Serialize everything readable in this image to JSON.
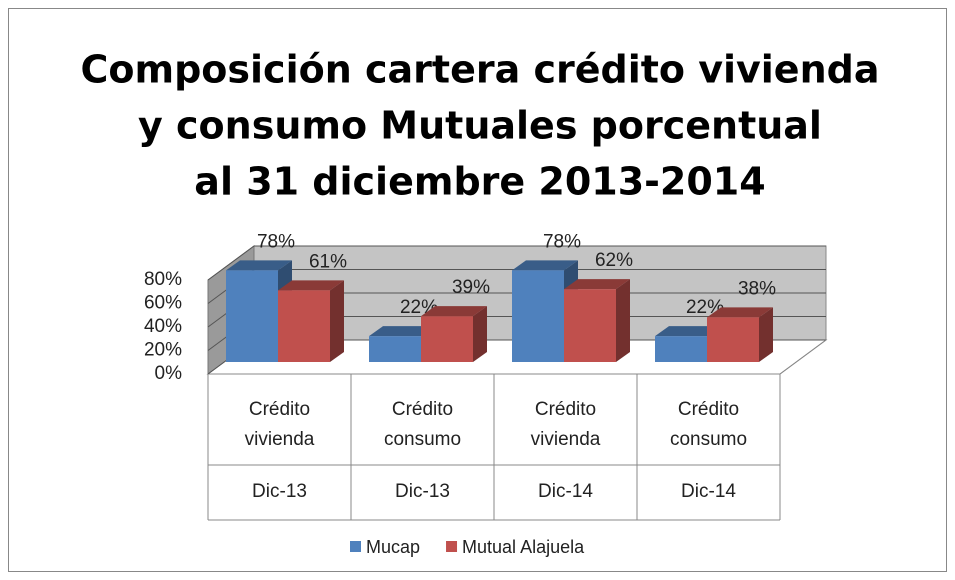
{
  "chart_data": {
    "type": "bar3d",
    "title": [
      "Composición cartera  crédito vivienda",
      "y consumo Mutuales porcentual",
      "al 31 diciembre 2013-2014"
    ],
    "categories": [
      [
        "Crédito",
        "vivienda"
      ],
      [
        "Crédito",
        "consumo"
      ],
      [
        "Crédito",
        "vivienda"
      ],
      [
        "Crédito",
        "consumo"
      ]
    ],
    "groups": [
      "Dic-13",
      "Dic-13",
      "Dic-14",
      "Dic-14"
    ],
    "series": [
      {
        "name": "Mucap",
        "color": "#4f81bd",
        "values": [
          78,
          22,
          78,
          22
        ],
        "value_labels": [
          "78%",
          "22%",
          "78%",
          "22%"
        ]
      },
      {
        "name": "Mutual Alajuela",
        "color": "#c0504d",
        "values": [
          61,
          39,
          62,
          38
        ],
        "value_labels": [
          "61%",
          "39%",
          "62%",
          "38%"
        ]
      }
    ],
    "ylim": [
      0,
      80
    ],
    "yticks": [
      {
        "value": 0,
        "label": "0%"
      },
      {
        "value": 20,
        "label": "20%"
      },
      {
        "value": 40,
        "label": "40%"
      },
      {
        "value": 60,
        "label": "60%"
      },
      {
        "value": 80,
        "label": "80%"
      }
    ],
    "grid": true,
    "legend": "bottom"
  }
}
